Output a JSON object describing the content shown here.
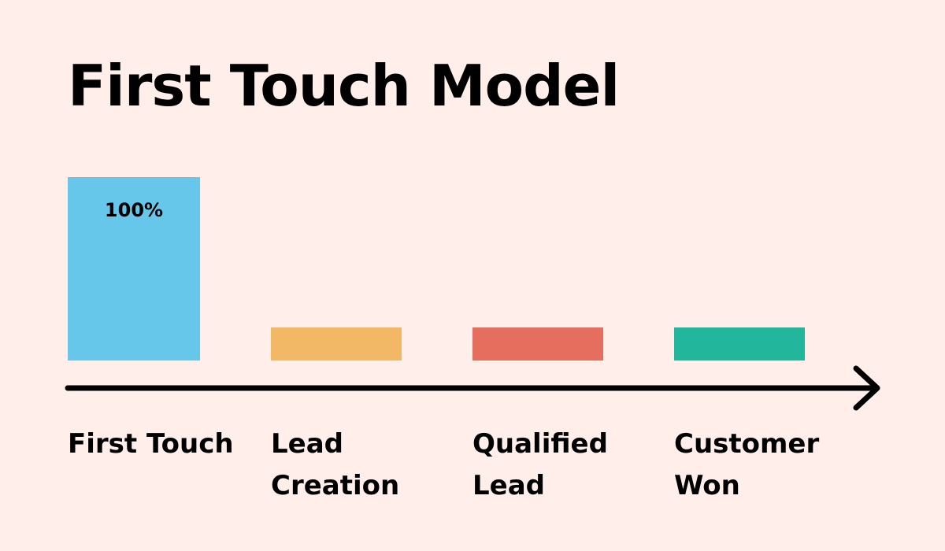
{
  "chart_data": {
    "type": "bar",
    "title": "First Touch Model",
    "categories": [
      "First Touch",
      "Lead Creation",
      "Qualified Lead",
      "Customer Won"
    ],
    "category_lines": [
      [
        "First Touch"
      ],
      [
        "Lead",
        "Creation"
      ],
      [
        "Qualified",
        "Lead"
      ],
      [
        "Customer",
        "Won"
      ]
    ],
    "values": [
      100,
      0,
      0,
      0
    ],
    "data_labels": [
      "100%",
      "",
      "",
      ""
    ],
    "colors": [
      "#66c7eb",
      "#f2b865",
      "#e66e5f",
      "#22b69c"
    ],
    "unit": "%",
    "ylim": [
      0,
      100
    ],
    "axis": "arrow",
    "grid": false,
    "legend": "none"
  }
}
